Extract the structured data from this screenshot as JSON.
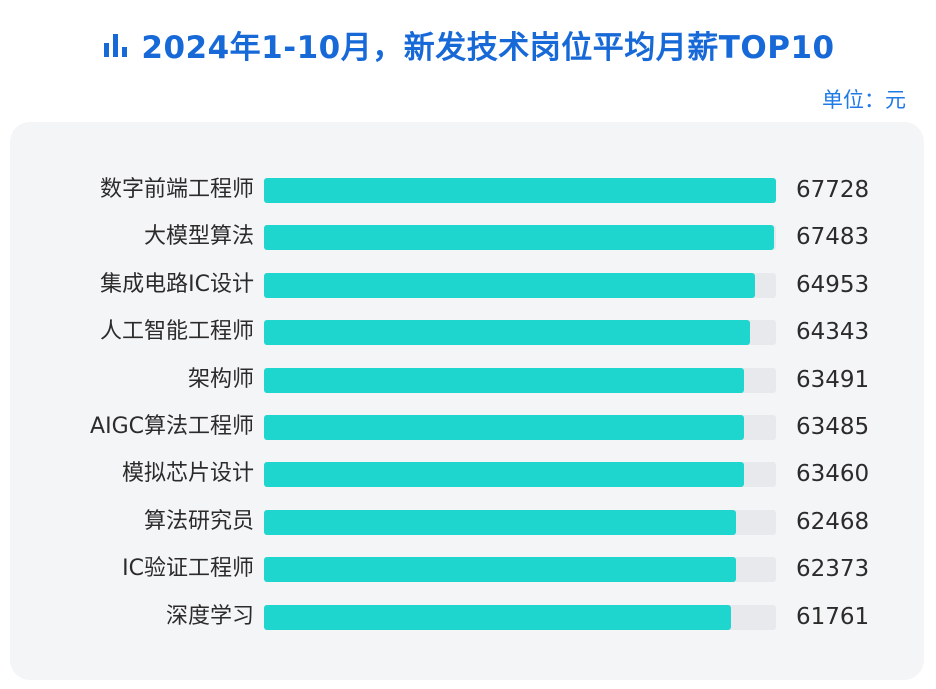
{
  "header": {
    "title": "2024年1-10月，新发技术岗位平均月薪TOP10",
    "unit": "单位：元",
    "icon": "bar-chart-icon"
  },
  "colors": {
    "title": "#1769d8",
    "bar": "#1fd6cf",
    "track": "#e8e9ec",
    "panel": "#f4f5f7"
  },
  "chart_data": {
    "type": "bar",
    "orientation": "horizontal",
    "title": "2024年1-10月，新发技术岗位平均月薪TOP10",
    "unit": "单位：元",
    "xlim": [
      0,
      67728
    ],
    "grid": false,
    "categories": [
      "数字前端工程师",
      "大模型算法",
      "集成电路IC设计",
      "人工智能工程师",
      "架构师",
      "AIGC算法工程师",
      "模拟芯片设计",
      "算法研究员",
      "IC验证工程师",
      "深度学习"
    ],
    "values": [
      67728,
      67483,
      64953,
      64343,
      63491,
      63485,
      63460,
      62468,
      62373,
      61761
    ],
    "value_labels": [
      "67728",
      "67483",
      "64953",
      "64343",
      "63491",
      "63485",
      "63460",
      "62468",
      "62373",
      "61761"
    ]
  }
}
